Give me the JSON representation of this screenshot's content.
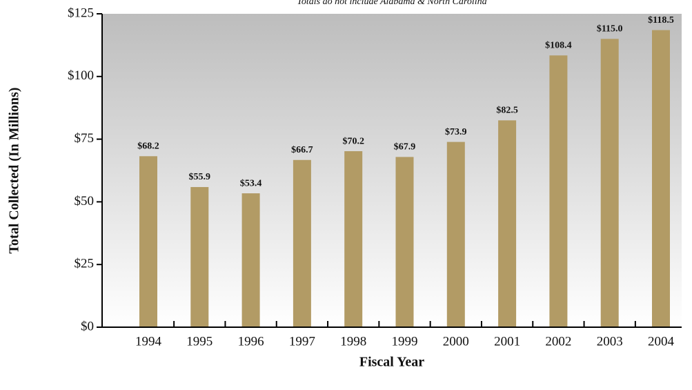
{
  "chart_data": {
    "type": "bar",
    "subtitle": "Totals do not include Alabama & North Carolina",
    "x_label": "Fiscal Year",
    "y_label": "Total Collected (In Millions)",
    "categories": [
      "1994",
      "1995",
      "1996",
      "1997",
      "1998",
      "1999",
      "2000",
      "2001",
      "2002",
      "2003",
      "2004"
    ],
    "values": [
      68.2,
      55.9,
      53.4,
      66.7,
      70.2,
      67.9,
      73.9,
      82.5,
      108.4,
      115.0,
      118.5
    ],
    "value_labels": [
      "$68.2",
      "$55.9",
      "$53.4",
      "$66.7",
      "$70.2",
      "$67.9",
      "$73.9",
      "$82.5",
      "$108.4",
      "$115.0",
      "$118.5"
    ],
    "color": "#b29b65",
    "ylim": [
      0,
      125
    ],
    "yticks": [
      {
        "value": 0,
        "label": "$0"
      },
      {
        "value": 25,
        "label": "$25"
      },
      {
        "value": 50,
        "label": "$50"
      },
      {
        "value": 75,
        "label": "$75"
      },
      {
        "value": 100,
        "label": "$100"
      },
      {
        "value": 125,
        "label": "$125"
      }
    ],
    "grid": false
  }
}
